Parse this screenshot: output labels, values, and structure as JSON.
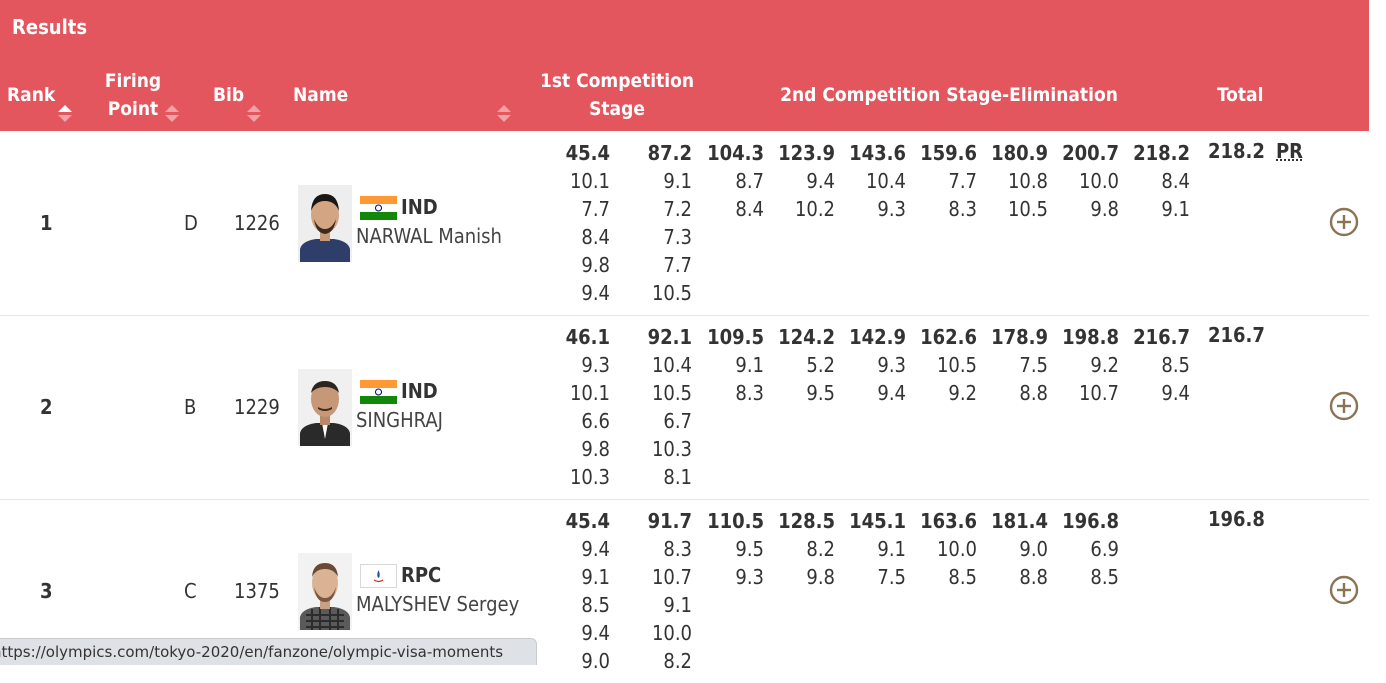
{
  "header": {
    "title": "Results",
    "columns": {
      "rank": "Rank",
      "firing_point_line1": "Firing",
      "firing_point_line2": "Point",
      "bib": "Bib",
      "name": "Name",
      "stage1_line1": "1st Competition",
      "stage1_line2": "Stage",
      "stage2": "2nd Competition Stage-Elimination",
      "total": "Total"
    },
    "colors": {
      "header_bg": "#e3565e",
      "expand_icon": "#8b7355"
    }
  },
  "results": [
    {
      "rank": "1",
      "firing_point": "D",
      "bib": "1226",
      "noc": "IND",
      "flag_icon": "india-flag-icon",
      "athlete": "NARWAL Manish",
      "stage1": {
        "sums": [
          "45.4",
          "87.2"
        ],
        "shots": [
          [
            "10.1",
            "7.7",
            "8.4",
            "9.8",
            "9.4"
          ],
          [
            "9.1",
            "7.2",
            "7.3",
            "7.7",
            "10.5"
          ]
        ]
      },
      "stage2": [
        {
          "sum": "104.3",
          "shots": [
            "8.7",
            "8.4"
          ]
        },
        {
          "sum": "123.9",
          "shots": [
            "9.4",
            "10.2"
          ]
        },
        {
          "sum": "143.6",
          "shots": [
            "10.4",
            "9.3"
          ]
        },
        {
          "sum": "159.6",
          "shots": [
            "7.7",
            "8.3"
          ]
        },
        {
          "sum": "180.9",
          "shots": [
            "10.8",
            "10.5"
          ]
        },
        {
          "sum": "200.7",
          "shots": [
            "10.0",
            "9.8"
          ]
        },
        {
          "sum": "218.2",
          "shots": [
            "8.4",
            "9.1"
          ]
        }
      ],
      "total": "218.2",
      "record": "PR"
    },
    {
      "rank": "2",
      "firing_point": "B",
      "bib": "1229",
      "noc": "IND",
      "flag_icon": "india-flag-icon",
      "athlete": "SINGHRAJ",
      "stage1": {
        "sums": [
          "46.1",
          "92.1"
        ],
        "shots": [
          [
            "9.3",
            "10.1",
            "6.6",
            "9.8",
            "10.3"
          ],
          [
            "10.4",
            "10.5",
            "6.7",
            "10.3",
            "8.1"
          ]
        ]
      },
      "stage2": [
        {
          "sum": "109.5",
          "shots": [
            "9.1",
            "8.3"
          ]
        },
        {
          "sum": "124.2",
          "shots": [
            "5.2",
            "9.5"
          ]
        },
        {
          "sum": "142.9",
          "shots": [
            "9.3",
            "9.4"
          ]
        },
        {
          "sum": "162.6",
          "shots": [
            "10.5",
            "9.2"
          ]
        },
        {
          "sum": "178.9",
          "shots": [
            "7.5",
            "8.8"
          ]
        },
        {
          "sum": "198.8",
          "shots": [
            "9.2",
            "10.7"
          ]
        },
        {
          "sum": "216.7",
          "shots": [
            "8.5",
            "9.4"
          ]
        }
      ],
      "total": "216.7",
      "record": ""
    },
    {
      "rank": "3",
      "firing_point": "C",
      "bib": "1375",
      "noc": "RPC",
      "flag_icon": "rpc-flag-icon",
      "athlete": "MALYSHEV Sergey",
      "stage1": {
        "sums": [
          "45.4",
          "91.7"
        ],
        "shots": [
          [
            "9.4",
            "9.1",
            "8.5",
            "9.4",
            "9.0"
          ],
          [
            "8.3",
            "10.7",
            "9.1",
            "10.0",
            "8.2"
          ]
        ]
      },
      "stage2": [
        {
          "sum": "110.5",
          "shots": [
            "9.5",
            "9.3"
          ]
        },
        {
          "sum": "128.5",
          "shots": [
            "8.2",
            "9.8"
          ]
        },
        {
          "sum": "145.1",
          "shots": [
            "9.1",
            "7.5"
          ]
        },
        {
          "sum": "163.6",
          "shots": [
            "10.0",
            "8.5"
          ]
        },
        {
          "sum": "181.4",
          "shots": [
            "9.0",
            "8.8"
          ]
        },
        {
          "sum": "196.8",
          "shots": [
            "6.9",
            "8.5"
          ]
        },
        {
          "sum": "",
          "shots": []
        }
      ],
      "total": "196.8",
      "record": ""
    }
  ],
  "statusbar": {
    "url": "https://olympics.com/tokyo-2020/en/fanzone/olympic-visa-moments"
  }
}
